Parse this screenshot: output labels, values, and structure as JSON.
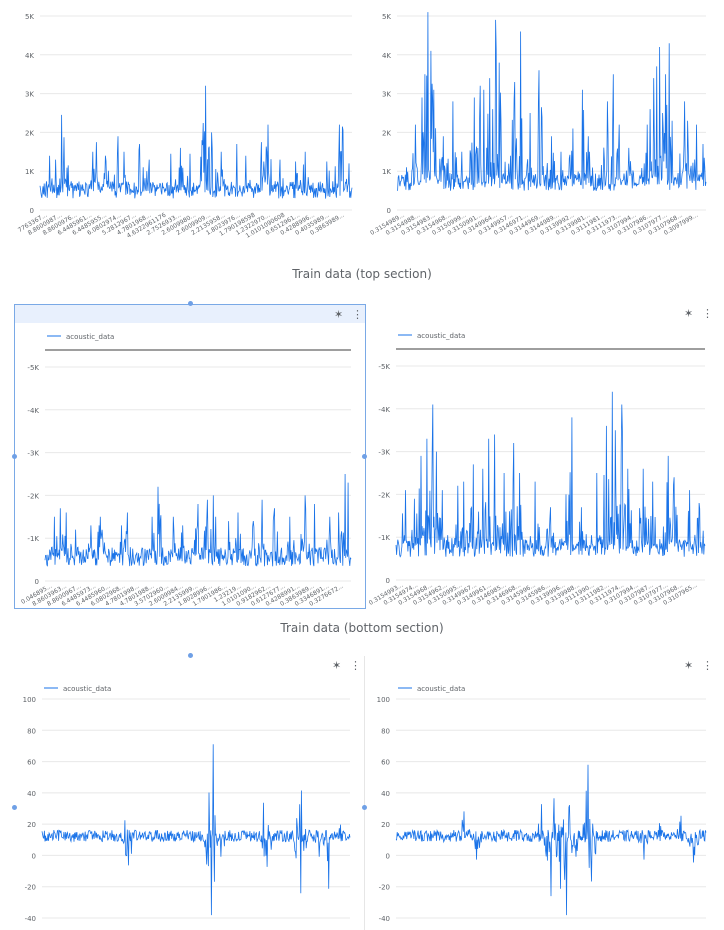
{
  "captions": {
    "top": "Train data (top section)",
    "bottom": "Train data (bottom section)"
  },
  "toolbar": {
    "explore_icon": "explore-icon",
    "more_icon": "more-vert-icon"
  },
  "colors": {
    "series": "#1a73e8",
    "grid": "#e8e8e8",
    "axis": "#757575",
    "text": "#5f6368",
    "selection": "#7aa9e6"
  },
  "chart_data": [
    {
      "type": "line",
      "legend": "",
      "yticks": [
        "0",
        "1K",
        "2K",
        "3K",
        "4K",
        "5K"
      ],
      "ylim": [
        0,
        5000
      ],
      "xtick_labels": [
        "7763367...",
        "8.8600987...",
        "8.8600976...",
        "6.4485961...",
        "6.4485955...",
        "6.0802974...",
        "5.2812967...",
        "4.7801968...",
        "4.6322961176",
        "2.7526933...",
        "2.6009980...",
        "2.6009909...",
        "2.2135958...",
        "1.8023976...",
        "1.790198598",
        "1.2322970...",
        "1.0101090608",
        "0.6512961...",
        "0.4288996...",
        "0.4035989...",
        "0.3863989..."
      ],
      "baseline": 450,
      "spikes": [
        [
          0.03,
          1400
        ],
        [
          0.05,
          1300
        ],
        [
          0.07,
          2450
        ],
        [
          0.09,
          1150
        ],
        [
          0.17,
          1500
        ],
        [
          0.18,
          1750
        ],
        [
          0.21,
          1400
        ],
        [
          0.25,
          1900
        ],
        [
          0.27,
          1500
        ],
        [
          0.32,
          1700
        ],
        [
          0.35,
          1300
        ],
        [
          0.42,
          1450
        ],
        [
          0.45,
          1600
        ],
        [
          0.48,
          1450
        ],
        [
          0.52,
          1800
        ],
        [
          0.53,
          3200
        ],
        [
          0.55,
          2000
        ],
        [
          0.58,
          1500
        ],
        [
          0.63,
          1700
        ],
        [
          0.66,
          1400
        ],
        [
          0.71,
          1750
        ],
        [
          0.73,
          2200
        ],
        [
          0.77,
          1300
        ],
        [
          0.82,
          1250
        ],
        [
          0.85,
          1500
        ],
        [
          0.92,
          1250
        ],
        [
          0.96,
          2200
        ],
        [
          0.97,
          2150
        ],
        [
          0.99,
          1200
        ]
      ]
    },
    {
      "type": "line",
      "legend": "",
      "yticks": [
        "0",
        "1K",
        "2K",
        "3K",
        "4K",
        "5K"
      ],
      "ylim": [
        0,
        5000
      ],
      "xtick_labels": [
        "0.3154989...",
        "0.3154988...",
        "0.3154983...",
        "0.3154968...",
        "0.3150999...",
        "0.3150991...",
        "0.3149964...",
        "0.3149957...",
        "0.3146971...",
        "0.3144969...",
        "0.3144989...",
        "0.3139992...",
        "0.3139981...",
        "0.3111981...",
        "0.3111973...",
        "0.3107994...",
        "0.3107986...",
        "0.3107977...",
        "0.3107968...",
        "0.3097999..."
      ],
      "baseline": 650,
      "spikes": [
        [
          0.03,
          1100
        ],
        [
          0.06,
          2200
        ],
        [
          0.08,
          2900
        ],
        [
          0.09,
          3500
        ],
        [
          0.1,
          5100
        ],
        [
          0.11,
          4100
        ],
        [
          0.12,
          3100
        ],
        [
          0.15,
          1900
        ],
        [
          0.18,
          2800
        ],
        [
          0.21,
          1500
        ],
        [
          0.25,
          2900
        ],
        [
          0.27,
          3200
        ],
        [
          0.28,
          3100
        ],
        [
          0.3,
          3400
        ],
        [
          0.31,
          2600
        ],
        [
          0.32,
          4900
        ],
        [
          0.33,
          3800
        ],
        [
          0.38,
          3300
        ],
        [
          0.4,
          4600
        ],
        [
          0.43,
          2500
        ],
        [
          0.46,
          3600
        ],
        [
          0.5,
          1900
        ],
        [
          0.53,
          1500
        ],
        [
          0.57,
          2100
        ],
        [
          0.6,
          3100
        ],
        [
          0.62,
          1900
        ],
        [
          0.68,
          2800
        ],
        [
          0.7,
          3500
        ],
        [
          0.72,
          2200
        ],
        [
          0.75,
          1600
        ],
        [
          0.8,
          3000
        ],
        [
          0.8,
          1200
        ],
        [
          0.81,
          2200
        ],
        [
          0.82,
          2600
        ],
        [
          0.83,
          3400
        ],
        [
          0.84,
          3700
        ],
        [
          0.85,
          4200
        ],
        [
          0.86,
          2500
        ],
        [
          0.87,
          3500
        ],
        [
          0.88,
          4300
        ],
        [
          0.89,
          2300
        ],
        [
          0.93,
          2800
        ],
        [
          0.94,
          2300
        ],
        [
          0.97,
          2200
        ],
        [
          0.99,
          1700
        ]
      ]
    },
    {
      "type": "line",
      "legend": "acoustic_data",
      "yticks": [
        "0",
        "-1K",
        "-2K",
        "-3K",
        "-4K",
        "-5K"
      ],
      "ylim": [
        0,
        5000
      ],
      "xtick_labels": [
        "0.046895...",
        "8.8603963...",
        "8.8600967...",
        "6.4485973...",
        "6.4485960...",
        "6.0802968...",
        "4.7801998...",
        "4.7801988...",
        "3.5702960...",
        "2.6009984...",
        "2.2135999...",
        "1.8028996...",
        "1.7901986...",
        "1.23219...",
        "1.0101090...",
        "0.9182962...",
        "0.6127677...",
        "0.4288991...",
        "0.3863989...",
        "0.3346891...",
        "0.3276672..."
      ],
      "baseline": 500,
      "spikes": [
        [
          0.03,
          1500
        ],
        [
          0.05,
          1700
        ],
        [
          0.07,
          1600
        ],
        [
          0.1,
          1200
        ],
        [
          0.15,
          1300
        ],
        [
          0.18,
          1500
        ],
        [
          0.25,
          1300
        ],
        [
          0.27,
          1600
        ],
        [
          0.35,
          1500
        ],
        [
          0.37,
          2200
        ],
        [
          0.42,
          1500
        ],
        [
          0.45,
          1300
        ],
        [
          0.5,
          1800
        ],
        [
          0.53,
          1900
        ],
        [
          0.55,
          2000
        ],
        [
          0.6,
          1400
        ],
        [
          0.63,
          1600
        ],
        [
          0.68,
          1400
        ],
        [
          0.71,
          1900
        ],
        [
          0.75,
          1700
        ],
        [
          0.8,
          1500
        ],
        [
          0.85,
          2000
        ],
        [
          0.88,
          1800
        ],
        [
          0.93,
          1500
        ],
        [
          0.96,
          1600
        ],
        [
          0.98,
          2500
        ],
        [
          0.99,
          2300
        ]
      ]
    },
    {
      "type": "line",
      "legend": "acoustic_data",
      "yticks": [
        "0",
        "-1K",
        "-2K",
        "-3K",
        "-4K",
        "-5K"
      ],
      "ylim": [
        0,
        5000
      ],
      "xtick_labels": [
        "0.3154993...",
        "0.3154974...",
        "0.3154968...",
        "0.3154962...",
        "0.3150995...",
        "0.3149967...",
        "0.3149961...",
        "0.3146985...",
        "0.3146968...",
        "0.3145996...",
        "0.3145986...",
        "0.3139996...",
        "0.3139988...",
        "0.3111990...",
        "0.3111982...",
        "0.3111974...",
        "0.3107994...",
        "0.3107987...",
        "0.3107977...",
        "0.3107968...",
        "0.3107965..."
      ],
      "baseline": 700,
      "spikes": [
        [
          0.03,
          2100
        ],
        [
          0.06,
          1900
        ],
        [
          0.08,
          2900
        ],
        [
          0.1,
          3300
        ],
        [
          0.12,
          4100
        ],
        [
          0.13,
          3000
        ],
        [
          0.15,
          2100
        ],
        [
          0.2,
          2200
        ],
        [
          0.22,
          2300
        ],
        [
          0.25,
          2700
        ],
        [
          0.28,
          2600
        ],
        [
          0.3,
          3300
        ],
        [
          0.32,
          3400
        ],
        [
          0.35,
          2500
        ],
        [
          0.38,
          3200
        ],
        [
          0.4,
          2500
        ],
        [
          0.45,
          2300
        ],
        [
          0.5,
          1700
        ],
        [
          0.55,
          2000
        ],
        [
          0.57,
          3800
        ],
        [
          0.6,
          1700
        ],
        [
          0.65,
          2500
        ],
        [
          0.68,
          3600
        ],
        [
          0.7,
          4400
        ],
        [
          0.71,
          3500
        ],
        [
          0.73,
          4100
        ],
        [
          0.75,
          2600
        ],
        [
          0.8,
          2600
        ],
        [
          0.83,
          2300
        ],
        [
          0.88,
          2900
        ],
        [
          0.9,
          2400
        ],
        [
          0.95,
          2100
        ],
        [
          0.98,
          1800
        ]
      ]
    },
    {
      "type": "line",
      "legend": "acoustic_data",
      "yticks": [
        "-40",
        "-20",
        "0",
        "20",
        "40",
        "60",
        "80",
        "100"
      ],
      "ylim": [
        -50,
        100
      ],
      "baseline": 5,
      "noise": 4,
      "spikes": [
        [
          0.27,
          17
        ],
        [
          0.28,
          -14
        ],
        [
          0.55,
          90
        ],
        [
          0.55,
          -48
        ],
        [
          0.58,
          -8
        ],
        [
          0.72,
          29
        ],
        [
          0.73,
          -15
        ],
        [
          0.84,
          43
        ],
        [
          0.84,
          -33
        ],
        [
          0.9,
          -8
        ],
        [
          0.93,
          -30
        ],
        [
          0.97,
          14
        ]
      ]
    },
    {
      "type": "line",
      "legend": "acoustic_data",
      "yticks": [
        "-40",
        "-20",
        "0",
        "20",
        "40",
        "60",
        "80",
        "100"
      ],
      "ylim": [
        -50,
        100
      ],
      "baseline": 5,
      "noise": 4,
      "spikes": [
        [
          0.22,
          23
        ],
        [
          0.26,
          -10
        ],
        [
          0.47,
          28
        ],
        [
          0.5,
          -35
        ],
        [
          0.51,
          32
        ],
        [
          0.53,
          -30
        ],
        [
          0.55,
          43
        ],
        [
          0.55,
          -48
        ],
        [
          0.58,
          -8
        ],
        [
          0.62,
          55
        ],
        [
          0.63,
          -25
        ],
        [
          0.8,
          -10
        ],
        [
          0.85,
          15
        ],
        [
          0.92,
          20
        ],
        [
          0.96,
          -12
        ]
      ]
    }
  ]
}
